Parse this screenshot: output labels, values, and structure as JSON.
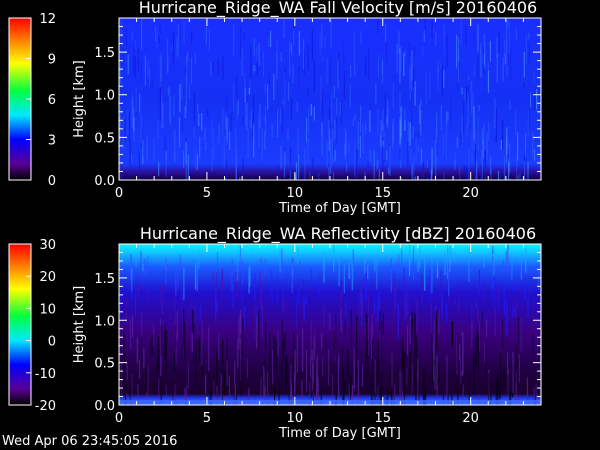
{
  "footer": {
    "timestamp": "Wed Apr 06 23:45:05 2016"
  },
  "chart_data": [
    {
      "type": "heatmap",
      "title": "Hurricane_Ridge_WA Fall Velocity [m/s] 20160406",
      "xlabel": "Time of Day [GMT]",
      "ylabel": "Height [km]",
      "xlim": [
        0,
        24
      ],
      "ylim": [
        0,
        1.9
      ],
      "xticks": [
        0,
        5,
        10,
        15,
        20
      ],
      "yticks": [
        0.0,
        0.5,
        1.0,
        1.5
      ],
      "ytick_labels": [
        "0.0",
        "0.5",
        "1.0",
        "1.5"
      ],
      "colorbar": {
        "min": 0,
        "max": 12,
        "ticks": [
          "12",
          "9",
          "6",
          "3",
          "0"
        ]
      },
      "field_description": "Fall velocity mostly ~1-2 m/s (blue) throughout all heights and times; near-zero (dark) values in lowest range gates",
      "typical_value": 1.5
    },
    {
      "type": "heatmap",
      "title": "Hurricane_Ridge_WA Reflectivity [dBZ] 20160406",
      "xlabel": "Time of Day [GMT]",
      "ylabel": "Height [km]",
      "xlim": [
        0,
        24
      ],
      "ylim": [
        0,
        1.9
      ],
      "xticks": [
        0,
        5,
        10,
        15,
        20
      ],
      "yticks": [
        0.0,
        0.5,
        1.0,
        1.5
      ],
      "ytick_labels": [
        "0.0",
        "0.5",
        "1.0",
        "1.5"
      ],
      "colorbar": {
        "min": -20,
        "max": 30,
        "ticks": [
          "30",
          "20",
          "10",
          "0",
          "-10",
          "-20"
        ]
      },
      "field_description": "Reflectivity ~ -5 dBZ (cyan) near 1.85 km decreasing to ~ -15 to -20 dBZ (purple/black) below 1.3 km; bright band near 0 km",
      "profile_by_height": [
        [
          0.0,
          -8
        ],
        [
          0.1,
          -20
        ],
        [
          0.5,
          -17
        ],
        [
          1.0,
          -15
        ],
        [
          1.3,
          -12
        ],
        [
          1.6,
          -9
        ],
        [
          1.8,
          -5
        ],
        [
          1.9,
          -2
        ]
      ]
    }
  ],
  "colors": {
    "background": "#000000",
    "text": "#ffffff"
  }
}
